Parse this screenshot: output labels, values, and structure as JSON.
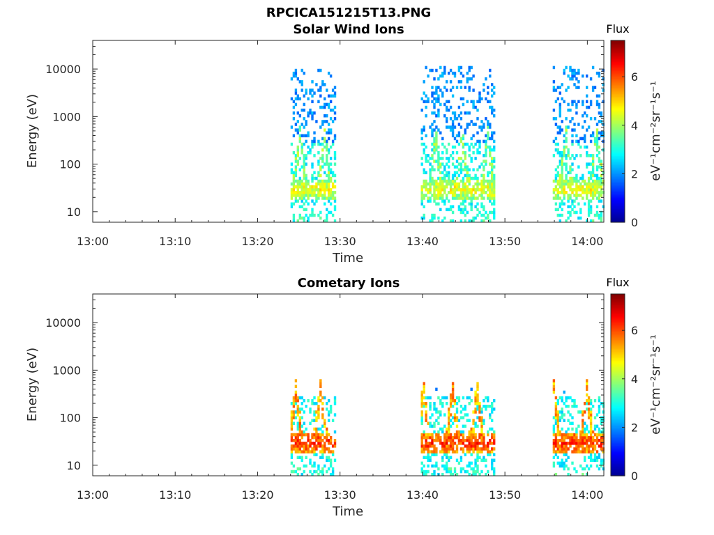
{
  "figure_title": "RPCICA151215T13.PNG",
  "colors": {
    "colormap": [
      "#00008f",
      "#0000ff",
      "#0080ff",
      "#00ffff",
      "#80ff80",
      "#ffff00",
      "#ff8000",
      "#ff0000",
      "#800000"
    ],
    "axis": "#262626"
  },
  "chart_data": [
    {
      "type": "heatmap",
      "title": "Solar Wind Ions",
      "xlabel": "Time",
      "ylabel": "Energy (eV)",
      "x_ticks": [
        "13:00",
        "13:10",
        "13:20",
        "13:30",
        "13:40",
        "13:50",
        "14:00"
      ],
      "x_range_minutes_after_13_00": [
        0,
        62
      ],
      "y_scale": "log",
      "y_ticks": [
        "10",
        "100",
        "1000",
        "10000"
      ],
      "y_range": [
        6,
        40000
      ],
      "colorbar": {
        "title": "Flux",
        "label": "eV⁻¹cm⁻²sr⁻¹s⁻¹",
        "ticks": [
          "0",
          "2",
          "4",
          "6"
        ],
        "range": [
          0,
          7.5
        ]
      },
      "blocks": [
        {
          "t_start": 24.0,
          "t_end": 29.5,
          "bursts_at": [
            25.0,
            28.0
          ],
          "e_top": 10000
        },
        {
          "t_start": 39.8,
          "t_end": 48.8,
          "bursts_at": [
            41.5,
            44.7,
            47.8
          ],
          "e_top": 12000
        },
        {
          "t_start": 55.8,
          "t_end": 62.0,
          "bursts_at": [
            57.3,
            61.0
          ],
          "e_top": 11000
        }
      ],
      "features": {
        "core_energy_eV": 30,
        "core_flux": 5.2,
        "sparse_high_energy_flux": 1.6
      }
    },
    {
      "type": "heatmap",
      "title": "Cometary Ions",
      "xlabel": "Time",
      "ylabel": "Energy (eV)",
      "x_ticks": [
        "13:00",
        "13:10",
        "13:20",
        "13:30",
        "13:40",
        "13:50",
        "14:00"
      ],
      "x_range_minutes_after_13_00": [
        0,
        62
      ],
      "y_scale": "log",
      "y_ticks": [
        "10",
        "100",
        "1000",
        "10000"
      ],
      "y_range": [
        6,
        40000
      ],
      "colorbar": {
        "title": "Flux",
        "label": "eV⁻¹cm⁻²sr⁻¹s⁻¹",
        "ticks": [
          "0",
          "2",
          "4",
          "6"
        ],
        "range": [
          0,
          7.5
        ]
      },
      "blocks": [
        {
          "t_start": 24.0,
          "t_end": 29.5,
          "bursts_at": [
            24.5,
            27.5
          ],
          "e_top": 400
        },
        {
          "t_start": 39.8,
          "t_end": 48.8,
          "bursts_at": [
            40.0,
            43.5,
            46.5
          ],
          "e_top": 400
        },
        {
          "t_start": 55.8,
          "t_end": 62.0,
          "bursts_at": [
            55.8,
            59.8
          ],
          "e_top": 400
        }
      ],
      "features": {
        "core_energy_eV": 30,
        "core_flux": 6.8,
        "sparse_high_energy_flux": 1.5
      }
    }
  ]
}
